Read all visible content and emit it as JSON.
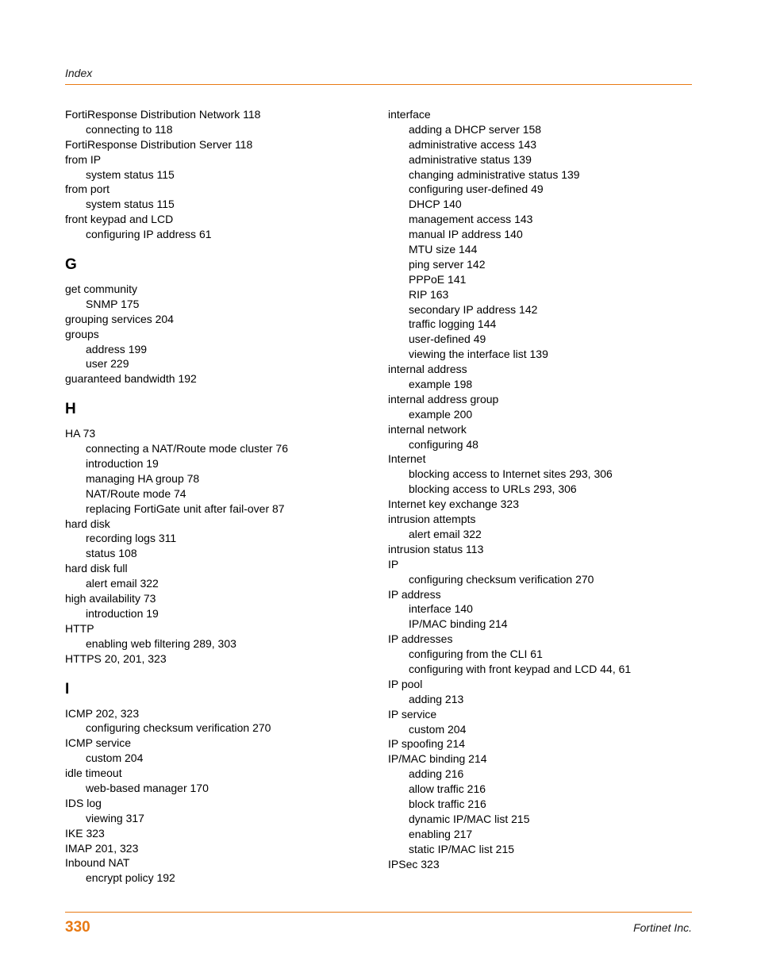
{
  "header_label": "Index",
  "page_number": "330",
  "company": "Fortinet Inc.",
  "accent_color": "#e87a14",
  "text_color": "#000000",
  "background_color": "#ffffff",
  "font_size_body": 14,
  "font_size_letter": 19,
  "font_size_page_number": 19,
  "left_column": [
    {
      "type": "main",
      "text": "FortiResponse Distribution Network 118"
    },
    {
      "type": "sub",
      "text": "connecting to 118"
    },
    {
      "type": "main",
      "text": "FortiResponse Distribution Server 118"
    },
    {
      "type": "main",
      "text": "from IP"
    },
    {
      "type": "sub",
      "text": "system status 115"
    },
    {
      "type": "main",
      "text": "from port"
    },
    {
      "type": "sub",
      "text": "system status 115"
    },
    {
      "type": "main",
      "text": "front keypad and LCD"
    },
    {
      "type": "sub",
      "text": "configuring IP address 61"
    },
    {
      "type": "letter",
      "text": "G"
    },
    {
      "type": "main",
      "text": "get community"
    },
    {
      "type": "sub",
      "text": "SNMP 175"
    },
    {
      "type": "main",
      "text": "grouping services 204"
    },
    {
      "type": "main",
      "text": "groups"
    },
    {
      "type": "sub",
      "text": "address 199"
    },
    {
      "type": "sub",
      "text": "user 229"
    },
    {
      "type": "main",
      "text": "guaranteed bandwidth 192"
    },
    {
      "type": "letter",
      "text": "H"
    },
    {
      "type": "main",
      "text": "HA 73"
    },
    {
      "type": "sub",
      "text": "connecting a NAT/Route mode cluster 76"
    },
    {
      "type": "sub",
      "text": "introduction 19"
    },
    {
      "type": "sub",
      "text": "managing HA group 78"
    },
    {
      "type": "sub",
      "text": "NAT/Route mode 74"
    },
    {
      "type": "sub",
      "text": "replacing FortiGate unit after fail-over 87"
    },
    {
      "type": "main",
      "text": "hard disk"
    },
    {
      "type": "sub",
      "text": "recording logs 311"
    },
    {
      "type": "sub",
      "text": "status 108"
    },
    {
      "type": "main",
      "text": "hard disk full"
    },
    {
      "type": "sub",
      "text": "alert email 322"
    },
    {
      "type": "main",
      "text": "high availability 73"
    },
    {
      "type": "sub",
      "text": "introduction 19"
    },
    {
      "type": "main",
      "text": "HTTP"
    },
    {
      "type": "sub",
      "text": "enabling web filtering 289, 303"
    },
    {
      "type": "main",
      "text": "HTTPS 20, 201, 323"
    },
    {
      "type": "letter",
      "text": "I"
    },
    {
      "type": "main",
      "text": "ICMP 202, 323"
    },
    {
      "type": "sub",
      "text": "configuring checksum verification 270"
    },
    {
      "type": "main",
      "text": "ICMP service"
    },
    {
      "type": "sub",
      "text": "custom 204"
    },
    {
      "type": "main",
      "text": "idle timeout"
    },
    {
      "type": "sub",
      "text": "web-based manager 170"
    },
    {
      "type": "main",
      "text": "IDS log"
    },
    {
      "type": "sub",
      "text": "viewing 317"
    },
    {
      "type": "main",
      "text": "IKE 323"
    },
    {
      "type": "main",
      "text": "IMAP 201, 323"
    },
    {
      "type": "main",
      "text": "Inbound NAT"
    },
    {
      "type": "sub",
      "text": "encrypt policy 192"
    }
  ],
  "right_column": [
    {
      "type": "main",
      "text": "interface"
    },
    {
      "type": "sub",
      "text": "adding a DHCP server 158"
    },
    {
      "type": "sub",
      "text": "administrative access 143"
    },
    {
      "type": "sub",
      "text": "administrative status 139"
    },
    {
      "type": "sub",
      "text": "changing administrative status 139"
    },
    {
      "type": "sub",
      "text": "configuring user-defined 49"
    },
    {
      "type": "sub",
      "text": "DHCP 140"
    },
    {
      "type": "sub",
      "text": "management access 143"
    },
    {
      "type": "sub",
      "text": "manual IP address 140"
    },
    {
      "type": "sub",
      "text": "MTU size 144"
    },
    {
      "type": "sub",
      "text": "ping server 142"
    },
    {
      "type": "sub",
      "text": "PPPoE 141"
    },
    {
      "type": "sub",
      "text": "RIP 163"
    },
    {
      "type": "sub",
      "text": "secondary IP address 142"
    },
    {
      "type": "sub",
      "text": "traffic logging 144"
    },
    {
      "type": "sub",
      "text": "user-defined 49"
    },
    {
      "type": "sub",
      "text": "viewing the interface list 139"
    },
    {
      "type": "main",
      "text": "internal address"
    },
    {
      "type": "sub",
      "text": "example 198"
    },
    {
      "type": "main",
      "text": "internal address group"
    },
    {
      "type": "sub",
      "text": "example 200"
    },
    {
      "type": "main",
      "text": "internal network"
    },
    {
      "type": "sub",
      "text": "configuring 48"
    },
    {
      "type": "main",
      "text": "Internet"
    },
    {
      "type": "sub",
      "text": "blocking access to Internet sites 293, 306"
    },
    {
      "type": "sub",
      "text": "blocking access to URLs 293, 306"
    },
    {
      "type": "main",
      "text": "Internet key exchange 323"
    },
    {
      "type": "main",
      "text": "intrusion attempts"
    },
    {
      "type": "sub",
      "text": "alert email 322"
    },
    {
      "type": "main",
      "text": "intrusion status 113"
    },
    {
      "type": "main",
      "text": "IP"
    },
    {
      "type": "sub",
      "text": "configuring checksum verification 270"
    },
    {
      "type": "main",
      "text": "IP address"
    },
    {
      "type": "sub",
      "text": "interface 140"
    },
    {
      "type": "sub",
      "text": "IP/MAC binding 214"
    },
    {
      "type": "main",
      "text": "IP addresses"
    },
    {
      "type": "sub",
      "text": "configuring from the CLI 61"
    },
    {
      "type": "sub",
      "text": "configuring with front keypad and LCD 44, 61"
    },
    {
      "type": "main",
      "text": "IP pool"
    },
    {
      "type": "sub",
      "text": "adding 213"
    },
    {
      "type": "main",
      "text": "IP service"
    },
    {
      "type": "sub",
      "text": "custom 204"
    },
    {
      "type": "main",
      "text": "IP spoofing 214"
    },
    {
      "type": "main",
      "text": "IP/MAC binding 214"
    },
    {
      "type": "sub",
      "text": "adding 216"
    },
    {
      "type": "sub",
      "text": "allow traffic 216"
    },
    {
      "type": "sub",
      "text": "block traffic 216"
    },
    {
      "type": "sub",
      "text": "dynamic IP/MAC list 215"
    },
    {
      "type": "sub",
      "text": "enabling 217"
    },
    {
      "type": "sub",
      "text": "static IP/MAC list 215"
    },
    {
      "type": "main",
      "text": "IPSec 323"
    }
  ]
}
